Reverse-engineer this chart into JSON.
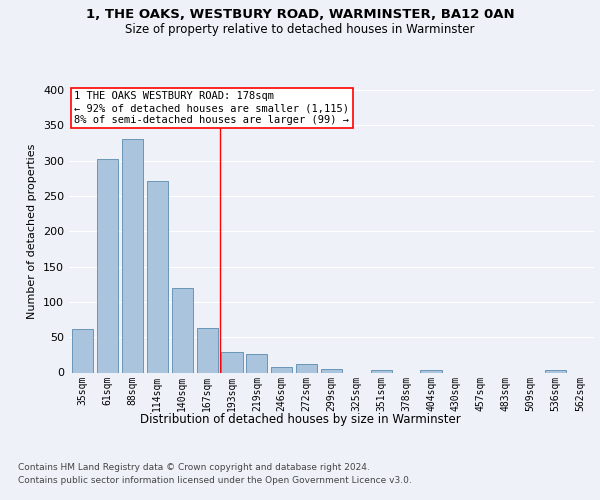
{
  "title1": "1, THE OAKS, WESTBURY ROAD, WARMINSTER, BA12 0AN",
  "title2": "Size of property relative to detached houses in Warminster",
  "xlabel": "Distribution of detached houses by size in Warminster",
  "ylabel": "Number of detached properties",
  "categories": [
    "35sqm",
    "61sqm",
    "88sqm",
    "114sqm",
    "140sqm",
    "167sqm",
    "193sqm",
    "219sqm",
    "246sqm",
    "272sqm",
    "299sqm",
    "325sqm",
    "351sqm",
    "378sqm",
    "404sqm",
    "430sqm",
    "457sqm",
    "483sqm",
    "509sqm",
    "536sqm",
    "562sqm"
  ],
  "values": [
    62,
    302,
    330,
    271,
    120,
    63,
    29,
    26,
    8,
    12,
    5,
    0,
    4,
    0,
    3,
    0,
    0,
    0,
    0,
    3,
    0
  ],
  "bar_color": "#aac4dd",
  "bar_edge_color": "#5a8ab0",
  "red_line_x": 5.5,
  "annotation_text": "1 THE OAKS WESTBURY ROAD: 178sqm\n← 92% of detached houses are smaller (1,115)\n8% of semi-detached houses are larger (99) →",
  "ylim": [
    0,
    400
  ],
  "yticks": [
    0,
    50,
    100,
    150,
    200,
    250,
    300,
    350,
    400
  ],
  "footnote1": "Contains HM Land Registry data © Crown copyright and database right 2024.",
  "footnote2": "Contains public sector information licensed under the Open Government Licence v3.0.",
  "bg_color": "#eef2f8",
  "grid_color": "#ffffff"
}
